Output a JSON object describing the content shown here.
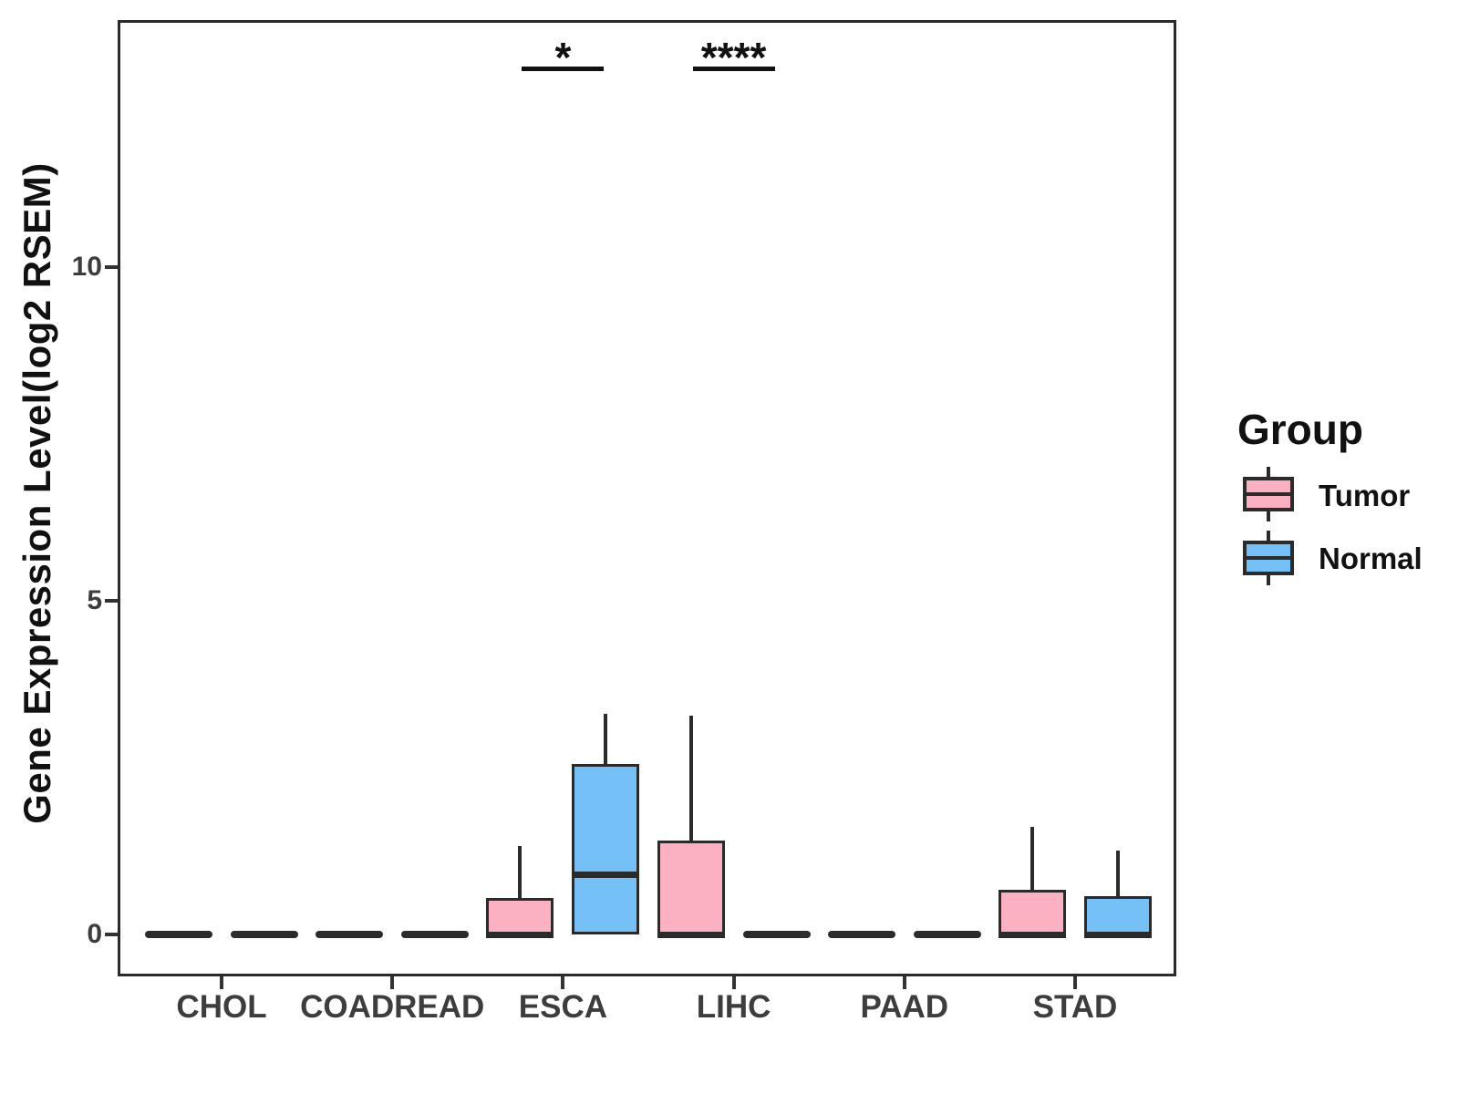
{
  "chart_data": {
    "type": "boxplot",
    "title": "",
    "xlabel": "",
    "ylabel": "Gene Expression Level(log2 RSEM)",
    "categories": [
      "CHOL",
      "COADREAD",
      "ESCA",
      "LIHC",
      "PAAD",
      "STAD"
    ],
    "y_ticks": [
      0,
      5,
      10
    ],
    "ylim": [
      -0.6,
      13.7
    ],
    "grid": false,
    "legend": {
      "title": "Group",
      "position": "right",
      "entries": [
        {
          "label": "Tumor",
          "color": "#FCB1C2"
        },
        {
          "label": "Normal",
          "color": "#75C0F6"
        }
      ]
    },
    "series": [
      {
        "name": "Tumor",
        "color": "#FCB1C2",
        "boxes": [
          {
            "category": "CHOL",
            "low": 0,
            "q1": 0,
            "median": 0,
            "q3": 0,
            "high": 0
          },
          {
            "category": "COADREAD",
            "low": 0,
            "q1": 0,
            "median": 0,
            "q3": 0,
            "high": 0
          },
          {
            "category": "ESCA",
            "low": 0,
            "q1": 0,
            "median": 0,
            "q3": 0.55,
            "high": 1.33
          },
          {
            "category": "LIHC",
            "low": 0,
            "q1": 0,
            "median": 0,
            "q3": 1.41,
            "high": 3.28
          },
          {
            "category": "PAAD",
            "low": 0,
            "q1": 0,
            "median": 0,
            "q3": 0,
            "high": 0
          },
          {
            "category": "STAD",
            "low": 0,
            "q1": 0,
            "median": 0,
            "q3": 0.67,
            "high": 1.61
          }
        ]
      },
      {
        "name": "Normal",
        "color": "#75C0F6",
        "boxes": [
          {
            "category": "CHOL",
            "low": 0,
            "q1": 0,
            "median": 0,
            "q3": 0,
            "high": 0
          },
          {
            "category": "COADREAD",
            "low": 0,
            "q1": 0,
            "median": 0,
            "q3": 0,
            "high": 0
          },
          {
            "category": "ESCA",
            "low": 0,
            "q1": 0,
            "median": 0.89,
            "q3": 2.56,
            "high": 3.31
          },
          {
            "category": "LIHC",
            "low": 0,
            "q1": 0,
            "median": 0,
            "q3": 0,
            "high": 0
          },
          {
            "category": "PAAD",
            "low": 0,
            "q1": 0,
            "median": 0,
            "q3": 0,
            "high": 0
          },
          {
            "category": "STAD",
            "low": 0,
            "q1": 0,
            "median": 0,
            "q3": 0.57,
            "high": 1.26
          }
        ]
      }
    ],
    "annotations": [
      {
        "category": "ESCA",
        "label": "*",
        "y": 13.0
      },
      {
        "category": "LIHC",
        "label": "****",
        "y": 13.0
      }
    ]
  },
  "colors": {
    "box_outline": "#2b2b2b",
    "axis_text": "#3d3d3d",
    "title_text": "#111111",
    "background": "#ffffff"
  }
}
